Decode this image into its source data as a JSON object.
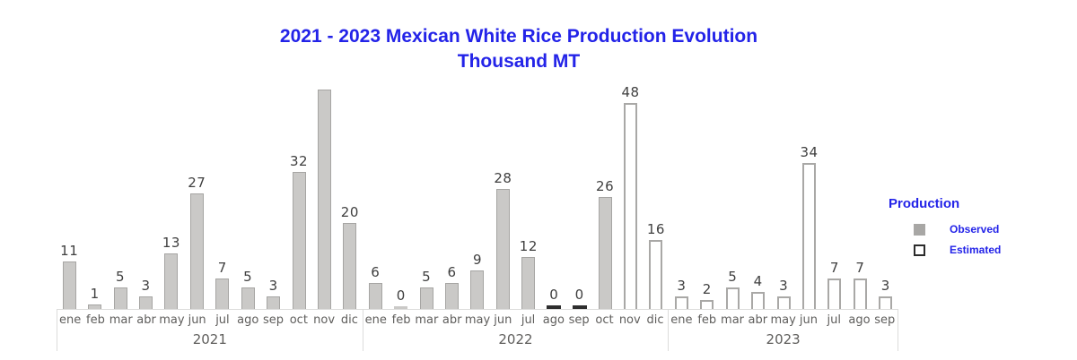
{
  "colors": {
    "accent": "#2323E8",
    "bar_fill": "#CAC9C7",
    "bar_border": "#A6A5A3",
    "estimated_border": "#A9A8A6",
    "zero_bar": "#2E2E2E",
    "label_text": "#3F3F3F",
    "axis_text": "#5F5E5C",
    "axis_line": "#DCDCDB",
    "legend_observed_swatch": "#A8A7A5",
    "legend_estimated_border": "#2B2B2B"
  },
  "chart_data": {
    "type": "bar",
    "title": "2021 - 2023 Mexican White Rice Production Evolution",
    "subtitle": "Thousand MT",
    "xlabel": "",
    "ylabel": "",
    "unit": "Thousand MT",
    "ylim": [
      0,
      51.5
    ],
    "grid": false,
    "value_labels": true,
    "legend": {
      "title": "Production",
      "position": "right",
      "items": [
        {
          "label": "Observed",
          "style": "observed"
        },
        {
          "label": "Estimated",
          "style": "estimated"
        }
      ]
    },
    "groups": [
      {
        "year": "2021",
        "bars": [
          {
            "month": "ene",
            "value": 11,
            "label": "11",
            "style": "observed"
          },
          {
            "month": "feb",
            "value": 1,
            "label": "1",
            "style": "observed"
          },
          {
            "month": "mar",
            "value": 5,
            "label": "5",
            "style": "observed"
          },
          {
            "month": "abr",
            "value": 3,
            "label": "3",
            "style": "observed"
          },
          {
            "month": "may",
            "value": 13,
            "label": "13",
            "style": "observed"
          },
          {
            "month": "jun",
            "value": 27,
            "label": "27",
            "style": "observed"
          },
          {
            "month": "jul",
            "value": 7,
            "label": "7",
            "style": "observed"
          },
          {
            "month": "ago",
            "value": 5,
            "label": "5",
            "style": "observed"
          },
          {
            "month": "sep",
            "value": 3,
            "label": "3",
            "style": "observed"
          },
          {
            "month": "oct",
            "value": 32,
            "label": "32",
            "style": "observed"
          },
          {
            "month": "nov",
            "value": 51,
            "label": "",
            "style": "observed",
            "clipped": true
          },
          {
            "month": "dic",
            "value": 20,
            "label": "20",
            "style": "observed"
          }
        ]
      },
      {
        "year": "2022",
        "bars": [
          {
            "month": "ene",
            "value": 6,
            "label": "6",
            "style": "observed"
          },
          {
            "month": "feb",
            "value": 0,
            "label": "0",
            "style": "observed-zero"
          },
          {
            "month": "mar",
            "value": 5,
            "label": "5",
            "style": "observed"
          },
          {
            "month": "abr",
            "value": 6,
            "label": "6",
            "style": "observed"
          },
          {
            "month": "may",
            "value": 9,
            "label": "9",
            "style": "observed"
          },
          {
            "month": "jun",
            "value": 28,
            "label": "28",
            "style": "observed"
          },
          {
            "month": "jul",
            "value": 12,
            "label": "12",
            "style": "observed"
          },
          {
            "month": "ago",
            "value": 0,
            "label": "0",
            "style": "estimated-zero"
          },
          {
            "month": "sep",
            "value": 0,
            "label": "0",
            "style": "estimated-zero"
          },
          {
            "month": "oct",
            "value": 26,
            "label": "26",
            "style": "observed"
          },
          {
            "month": "nov",
            "value": 48,
            "label": "48",
            "style": "estimated"
          },
          {
            "month": "dic",
            "value": 16,
            "label": "16",
            "style": "estimated"
          }
        ]
      },
      {
        "year": "2023",
        "bars": [
          {
            "month": "ene",
            "value": 3,
            "label": "3",
            "style": "estimated"
          },
          {
            "month": "feb",
            "value": 2,
            "label": "2",
            "style": "estimated"
          },
          {
            "month": "mar",
            "value": 5,
            "label": "5",
            "style": "estimated"
          },
          {
            "month": "abr",
            "value": 4,
            "label": "4",
            "style": "estimated"
          },
          {
            "month": "may",
            "value": 3,
            "label": "3",
            "style": "estimated"
          },
          {
            "month": "jun",
            "value": 34,
            "label": "34",
            "style": "estimated"
          },
          {
            "month": "jul",
            "value": 7,
            "label": "7",
            "style": "estimated"
          },
          {
            "month": "ago",
            "value": 7,
            "label": "7",
            "style": "estimated"
          },
          {
            "month": "sep",
            "value": 3,
            "label": "3",
            "style": "estimated"
          }
        ]
      }
    ]
  }
}
